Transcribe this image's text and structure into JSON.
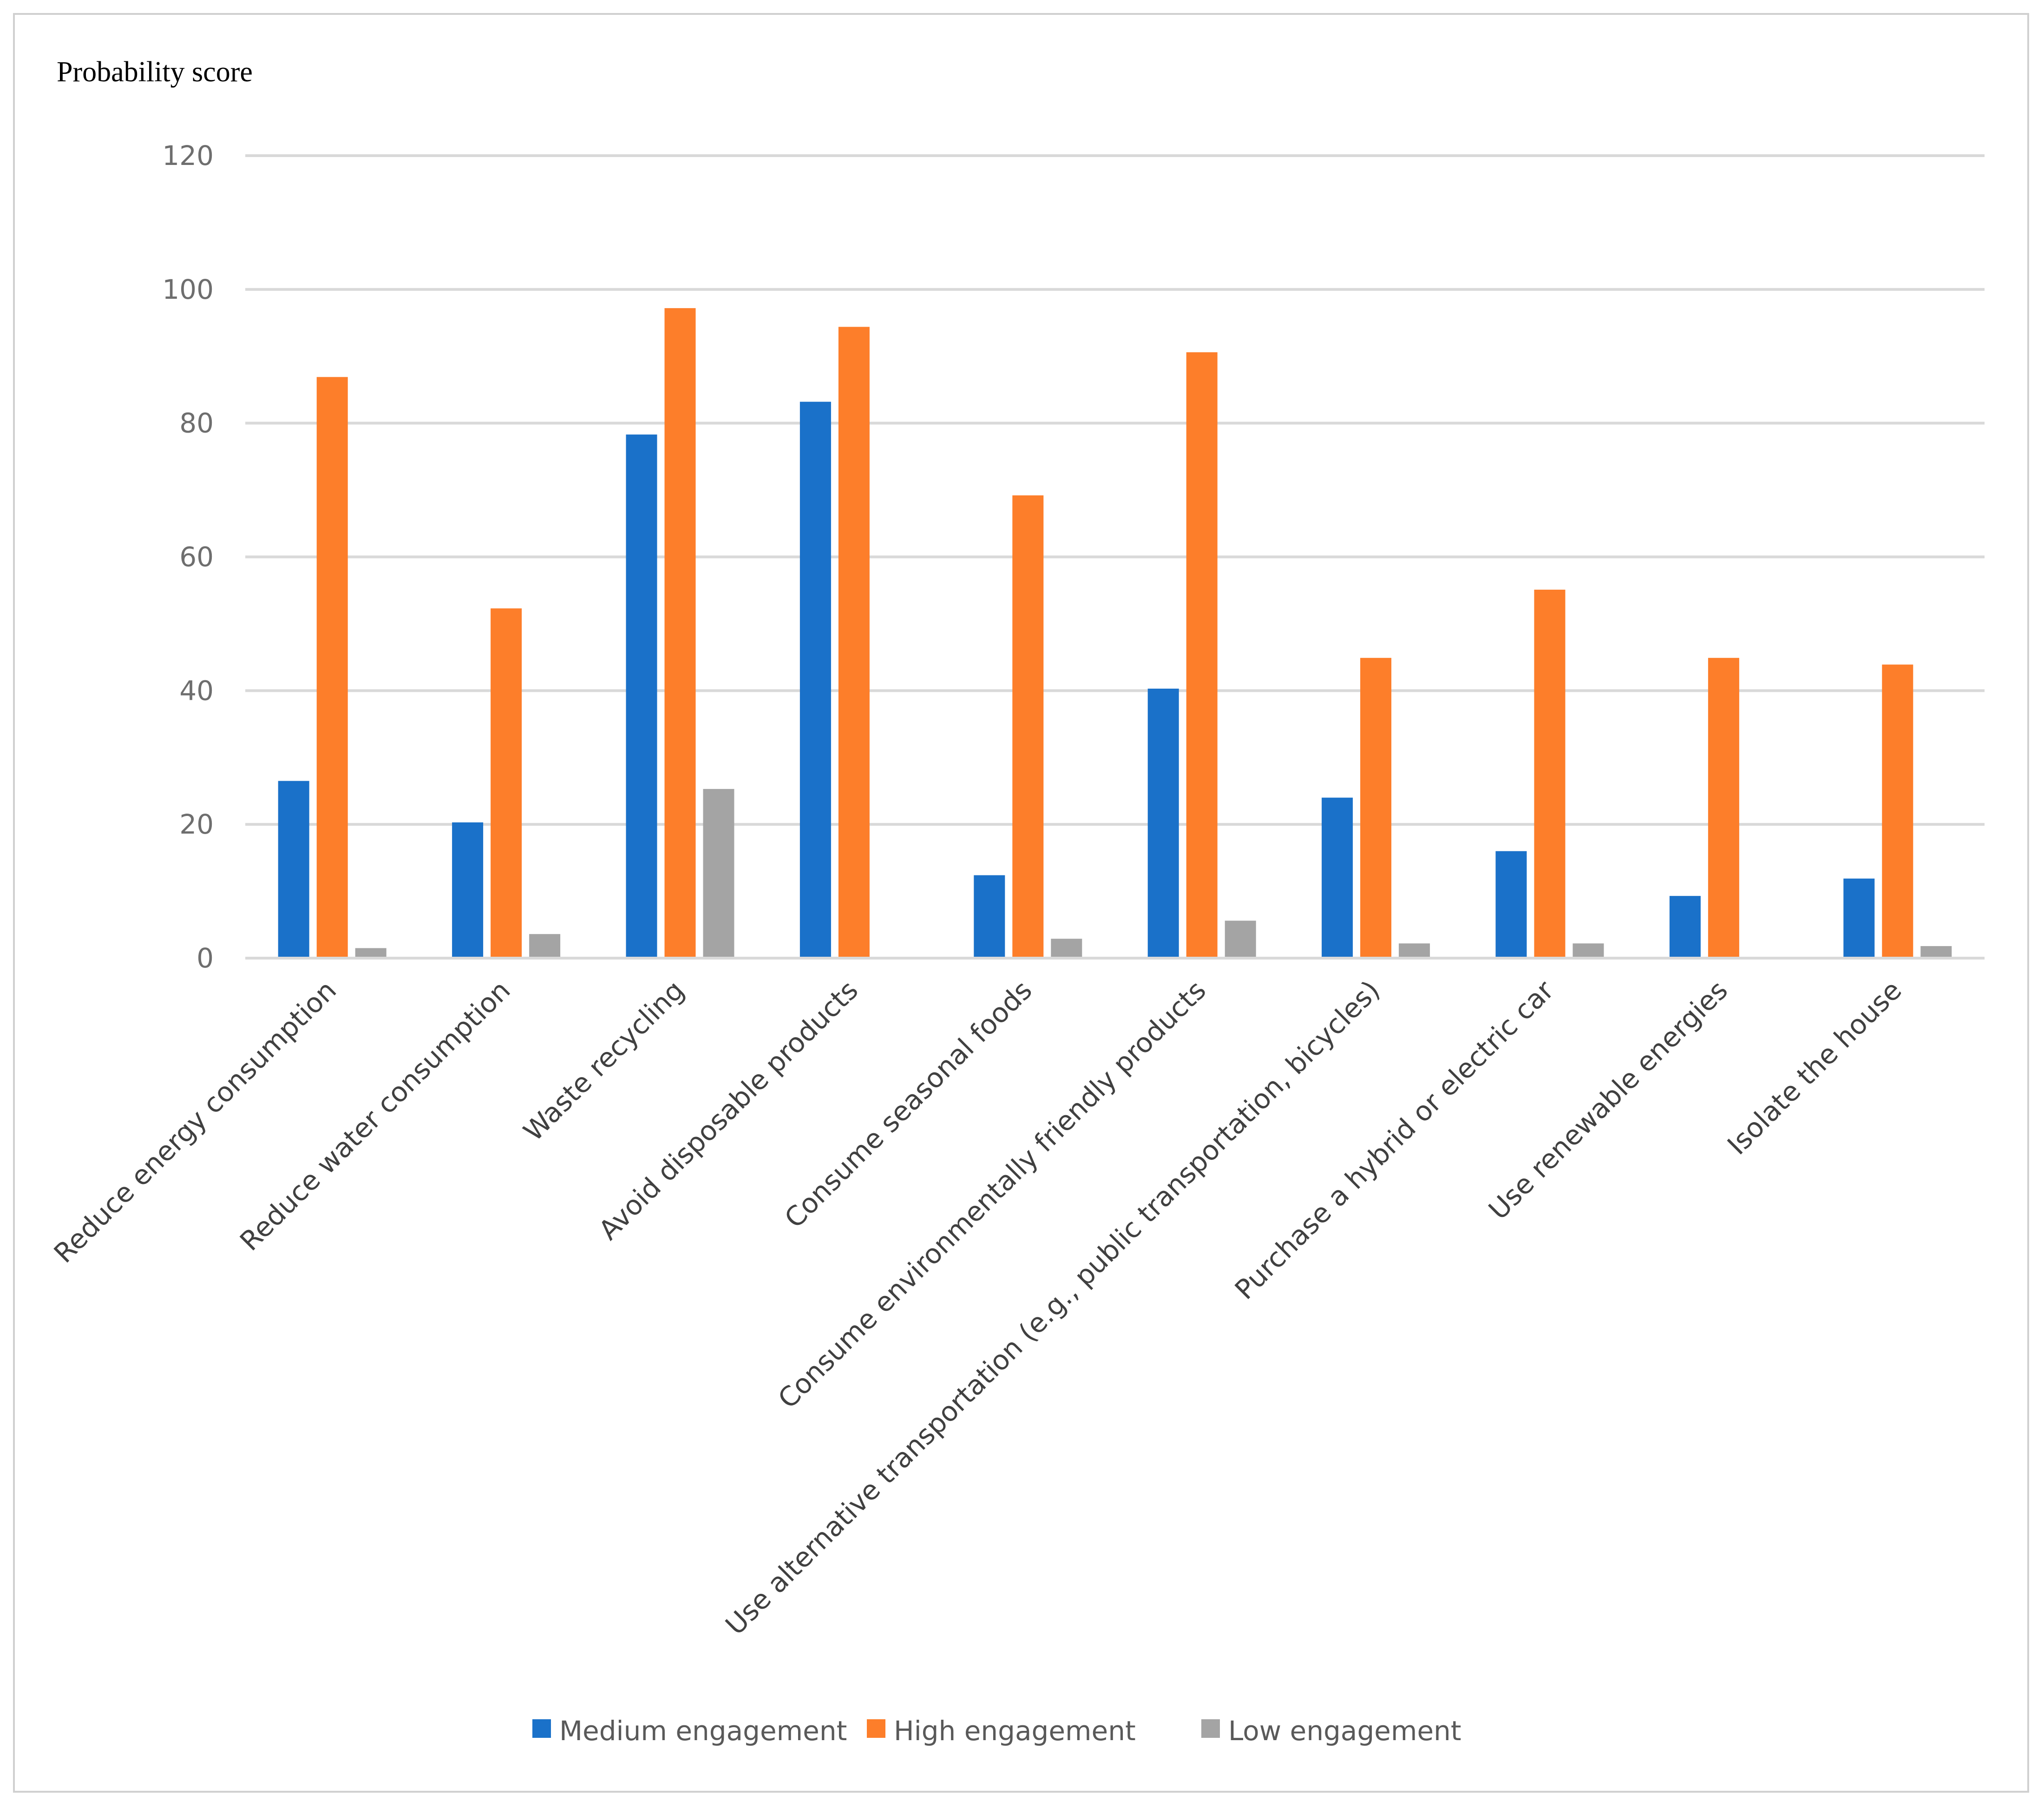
{
  "chart_data": {
    "type": "bar",
    "title": "",
    "ylabel": "Probability score",
    "xlabel": "",
    "ylim": [
      0,
      120
    ],
    "yticks": [
      0,
      20,
      40,
      60,
      80,
      100,
      120
    ],
    "grid": true,
    "legend_position": "bottom",
    "categories": [
      "Reduce energy consumption",
      "Reduce water consumption",
      "Waste recycling",
      "Avoid disposable products",
      "Consume seasonal foods",
      "Consume environmentally friendly products",
      "Use alternative transportation (e.g., public transportation, bicycles)",
      "Purchase a hybrid or electric car",
      "Use renewable energies",
      "Isolate the house"
    ],
    "series": [
      {
        "name": "Medium engagement",
        "color": "#1a71c9",
        "values": [
          26.5,
          20.3,
          78.3,
          83.2,
          12.4,
          40.3,
          24.0,
          16.0,
          9.3,
          11.9
        ]
      },
      {
        "name": "High engagement",
        "color": "#fd7e2a",
        "values": [
          86.9,
          52.3,
          97.2,
          94.4,
          69.2,
          90.6,
          44.9,
          55.1,
          44.9,
          43.9
        ]
      },
      {
        "name": "Low engagement",
        "color": "#a4a4a4",
        "values": [
          1.5,
          3.6,
          25.3,
          0,
          2.9,
          5.6,
          2.2,
          2.2,
          0,
          1.8
        ]
      }
    ]
  }
}
